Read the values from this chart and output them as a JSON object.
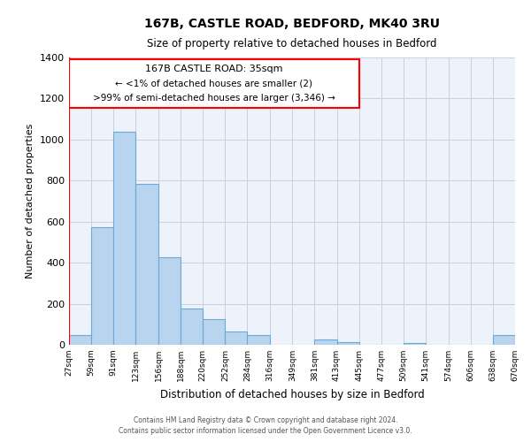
{
  "title": "167B, CASTLE ROAD, BEDFORD, MK40 3RU",
  "subtitle": "Size of property relative to detached houses in Bedford",
  "xlabel": "Distribution of detached houses by size in Bedford",
  "ylabel": "Number of detached properties",
  "bar_color": "#b8d4ee",
  "bar_edge_color": "#6aaad4",
  "background_color": "#eef2fa",
  "grid_color": "#c8cfe0",
  "annotation_text_line1": "167B CASTLE ROAD: 35sqm",
  "annotation_text_line2": "← <1% of detached houses are smaller (2)",
  "annotation_text_line3": ">99% of semi-detached houses are larger (3,346) →",
  "bins": [
    27,
    59,
    91,
    123,
    156,
    188,
    220,
    252,
    284,
    316,
    349,
    381,
    413,
    445,
    477,
    509,
    541,
    574,
    606,
    638,
    670
  ],
  "counts": [
    47,
    572,
    1040,
    786,
    425,
    178,
    124,
    65,
    47,
    0,
    0,
    27,
    15,
    0,
    0,
    7,
    0,
    0,
    0,
    47
  ],
  "ylim": [
    0,
    1400
  ],
  "yticks": [
    0,
    200,
    400,
    600,
    800,
    1000,
    1200,
    1400
  ],
  "footnote1": "Contains HM Land Registry data © Crown copyright and database right 2024.",
  "footnote2": "Contains public sector information licensed under the Open Government Licence v3.0."
}
